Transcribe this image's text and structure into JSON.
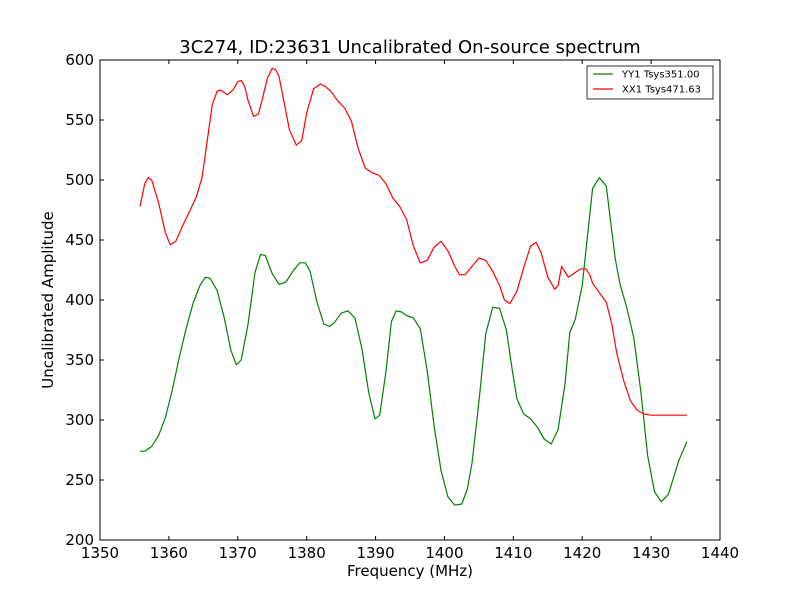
{
  "chart_data": {
    "type": "line",
    "title": "3C274, ID:23631 Uncalibrated On-source spectrum",
    "xlabel": "Frequency (MHz)",
    "ylabel": "Uncalibrated Amplitude",
    "xlim": [
      1350,
      1440
    ],
    "ylim": [
      200,
      600
    ],
    "xticks": [
      1350,
      1360,
      1370,
      1380,
      1390,
      1400,
      1410,
      1420,
      1430,
      1440
    ],
    "yticks": [
      200,
      250,
      300,
      350,
      400,
      450,
      500,
      550,
      600
    ],
    "grid": false,
    "legend_position": "top-right",
    "series": [
      {
        "name": "YY1 Tsys351.00",
        "color": "#008000",
        "x": [
          1355.8,
          1356.5,
          1357.5,
          1358.5,
          1359.5,
          1360.5,
          1361.5,
          1362.5,
          1363.5,
          1364.5,
          1365.3,
          1366.0,
          1367.0,
          1368.0,
          1369.0,
          1369.8,
          1370.5,
          1371.5,
          1372.5,
          1373.3,
          1374.0,
          1375.0,
          1376.0,
          1377.0,
          1378.0,
          1379.0,
          1379.8,
          1380.5,
          1381.5,
          1382.5,
          1383.3,
          1384.0,
          1385.0,
          1386.0,
          1387.0,
          1388.0,
          1389.0,
          1389.9,
          1390.6,
          1391.5,
          1392.3,
          1393.0,
          1393.8,
          1394.5,
          1395.5,
          1396.5,
          1397.5,
          1398.5,
          1399.5,
          1400.5,
          1401.5,
          1402.5,
          1403.3,
          1404.0,
          1405.0,
          1406.0,
          1407.0,
          1408.0,
          1409.0,
          1409.8,
          1410.5,
          1411.5,
          1412.5,
          1413.5,
          1414.5,
          1415.5,
          1416.5,
          1417.5,
          1418.2,
          1419.0,
          1420.0,
          1420.8,
          1421.5,
          1422.5,
          1423.5,
          1424.1,
          1424.8,
          1425.5,
          1426.5,
          1427.5,
          1428.5,
          1429.5,
          1430.5,
          1431.5,
          1432.5,
          1433.2,
          1434.0,
          1435.2
        ],
        "y": [
          274,
          274,
          278,
          287,
          302,
          325,
          352,
          376,
          397,
          412,
          419,
          418,
          408,
          386,
          358,
          346,
          350,
          380,
          423,
          438,
          437,
          422,
          413,
          415,
          424,
          431,
          431,
          424,
          398,
          380,
          378,
          381,
          389,
          391,
          385,
          360,
          323,
          301,
          304,
          340,
          382,
          391,
          390,
          387,
          385,
          376,
          341,
          295,
          258,
          236,
          229,
          230,
          242,
          264,
          315,
          372,
          394,
          393,
          375,
          343,
          318,
          305,
          301,
          294,
          284,
          280,
          292,
          330,
          373,
          384,
          412,
          455,
          493,
          502,
          495,
          466,
          434,
          413,
          393,
          368,
          324,
          270,
          240,
          232,
          238,
          251,
          266,
          282
        ]
      },
      {
        "name": "XX1 Tsys471.63",
        "color": "#ff0000",
        "x": [
          1355.8,
          1356.5,
          1357.0,
          1357.5,
          1358.5,
          1359.5,
          1360.2,
          1361.0,
          1362.0,
          1363.0,
          1364.0,
          1364.8,
          1365.5,
          1366.3,
          1367.0,
          1367.5,
          1368.5,
          1369.3,
          1370.0,
          1370.5,
          1371.0,
          1371.5,
          1372.3,
          1373.0,
          1373.5,
          1374.3,
          1375.0,
          1375.5,
          1376.0,
          1376.5,
          1377.5,
          1378.5,
          1379.3,
          1380.0,
          1381.0,
          1382.0,
          1382.7,
          1383.5,
          1384.5,
          1385.5,
          1386.5,
          1387.5,
          1388.5,
          1389.5,
          1390.5,
          1391.5,
          1392.5,
          1393.5,
          1394.5,
          1395.5,
          1396.5,
          1397.5,
          1398.5,
          1399.5,
          1400.5,
          1401.5,
          1402.2,
          1403.0,
          1404.0,
          1405.0,
          1406.0,
          1407.0,
          1408.0,
          1408.7,
          1409.5,
          1410.5,
          1411.5,
          1412.5,
          1413.3,
          1414.0,
          1415.0,
          1416.0,
          1416.5,
          1417.0,
          1418.0,
          1419.0,
          1419.8,
          1420.5,
          1421.1,
          1421.5,
          1422.5,
          1423.5,
          1424.3,
          1425.0,
          1426.0,
          1427.0,
          1428.0,
          1429.0,
          1430.0,
          1431.0,
          1432.0,
          1433.0,
          1434.0,
          1435.2
        ],
        "y": [
          478,
          497,
          502,
          500,
          481,
          456,
          446,
          449,
          462,
          474,
          486,
          502,
          530,
          563,
          574,
          575,
          571,
          575,
          582,
          583,
          578,
          566,
          553,
          555,
          566,
          585,
          593,
          592,
          586,
          571,
          542,
          529,
          533,
          556,
          576,
          580,
          578,
          574,
          566,
          560,
          549,
          526,
          510,
          506,
          504,
          497,
          485,
          478,
          467,
          445,
          431,
          433,
          444,
          449,
          441,
          428,
          421,
          421,
          428,
          435,
          433,
          424,
          412,
          400,
          397,
          407,
          427,
          445,
          448,
          440,
          419,
          409,
          412,
          428,
          419,
          423,
          426,
          426,
          421,
          414,
          406,
          398,
          380,
          356,
          333,
          316,
          308,
          305,
          304,
          304,
          304,
          304,
          304,
          304
        ]
      }
    ]
  }
}
